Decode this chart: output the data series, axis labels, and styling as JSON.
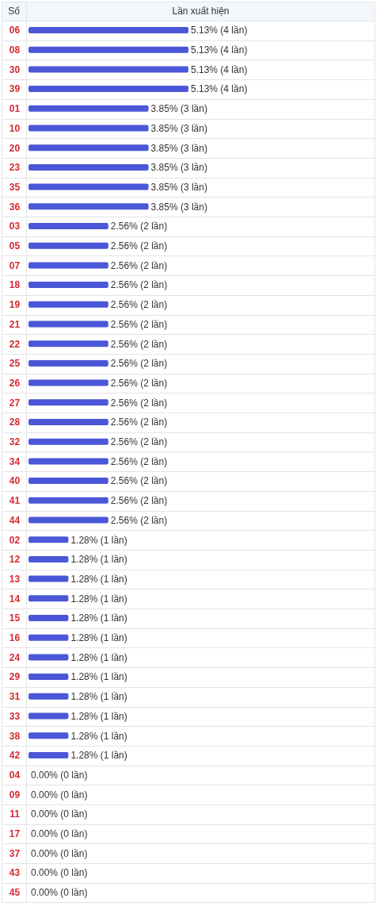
{
  "chart_data": {
    "type": "bar",
    "orientation": "horizontal",
    "ylabel": "Số",
    "xlabel": "Lần xuất hiện",
    "tick_labels": "y",
    "color": "#4b57d8",
    "categories": [
      "06",
      "08",
      "30",
      "39",
      "01",
      "10",
      "20",
      "23",
      "35",
      "36",
      "03",
      "05",
      "07",
      "18",
      "19",
      "21",
      "22",
      "25",
      "26",
      "27",
      "28",
      "32",
      "34",
      "40",
      "41",
      "44",
      "02",
      "12",
      "13",
      "14",
      "15",
      "16",
      "24",
      "29",
      "31",
      "33",
      "38",
      "42",
      "04",
      "09",
      "11",
      "17",
      "37",
      "43",
      "45"
    ],
    "values": [
      5.13,
      5.13,
      5.13,
      5.13,
      3.85,
      3.85,
      3.85,
      3.85,
      3.85,
      3.85,
      2.56,
      2.56,
      2.56,
      2.56,
      2.56,
      2.56,
      2.56,
      2.56,
      2.56,
      2.56,
      2.56,
      2.56,
      2.56,
      2.56,
      2.56,
      2.56,
      1.28,
      1.28,
      1.28,
      1.28,
      1.28,
      1.28,
      1.28,
      1.28,
      1.28,
      1.28,
      1.28,
      1.28,
      0,
      0,
      0,
      0,
      0,
      0,
      0
    ],
    "value_labels": [
      "5.13% (4 lần)",
      "5.13% (4 lần)",
      "5.13% (4 lần)",
      "5.13% (4 lần)",
      "3.85% (3 lần)",
      "3.85% (3 lần)",
      "3.85% (3 lần)",
      "3.85% (3 lần)",
      "3.85% (3 lần)",
      "3.85% (3 lần)",
      "2.56% (2 lần)",
      "2.56% (2 lần)",
      "2.56% (2 lần)",
      "2.56% (2 lần)",
      "2.56% (2 lần)",
      "2.56% (2 lần)",
      "2.56% (2 lần)",
      "2.56% (2 lần)",
      "2.56% (2 lần)",
      "2.56% (2 lần)",
      "2.56% (2 lần)",
      "2.56% (2 lần)",
      "2.56% (2 lần)",
      "2.56% (2 lần)",
      "2.56% (2 lần)",
      "2.56% (2 lần)",
      "1.28% (1 lần)",
      "1.28% (1 lần)",
      "1.28% (1 lần)",
      "1.28% (1 lần)",
      "1.28% (1 lần)",
      "1.28% (1 lần)",
      "1.28% (1 lần)",
      "1.28% (1 lần)",
      "1.28% (1 lần)",
      "1.28% (1 lần)",
      "1.28% (1 lần)",
      "1.28% (1 lần)",
      "0.00% (0 lần)",
      "0.00% (0 lần)",
      "0.00% (0 lần)",
      "0.00% (0 lần)",
      "0.00% (0 lần)",
      "0.00% (0 lần)",
      "0.00% (0 lần)"
    ]
  }
}
